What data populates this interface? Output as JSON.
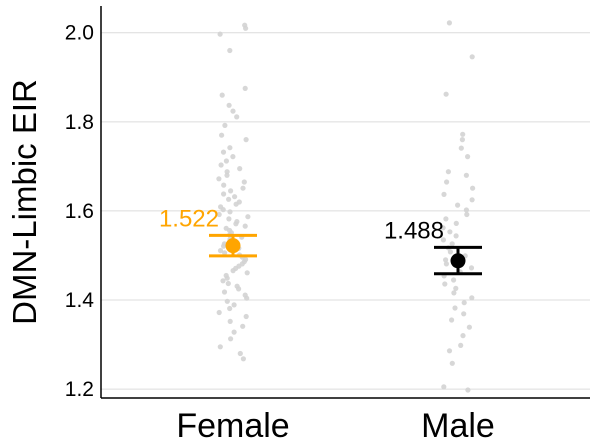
{
  "chart_data": {
    "type": "scatter",
    "title": "",
    "xlabel": "",
    "ylabel": "DMN-Limbic EIR",
    "categories": [
      "Female",
      "Male"
    ],
    "ylim": [
      1.18,
      2.06
    ],
    "yticks": [
      1.2,
      1.4,
      1.6,
      1.8,
      2.0
    ],
    "ytick_labels": [
      "1.2",
      "1.4",
      "1.6",
      "1.8",
      "2.0"
    ],
    "grid": "horizontal",
    "series": [
      {
        "category": "Female",
        "mean": 1.522,
        "mean_label": "1.522",
        "ci_low": 1.499,
        "ci_high": 1.545,
        "color": "#FFA500",
        "jitter_points": [
          2.017,
          2.01,
          1.997,
          1.96,
          1.875,
          1.86,
          1.837,
          1.824,
          1.811,
          1.792,
          1.77,
          1.76,
          1.742,
          1.732,
          1.722,
          1.712,
          1.703,
          1.695,
          1.688,
          1.68,
          1.672,
          1.665,
          1.658,
          1.651,
          1.645,
          1.638,
          1.632,
          1.626,
          1.62,
          1.615,
          1.609,
          1.603,
          1.598,
          1.592,
          1.587,
          1.582,
          1.576,
          1.571,
          1.566,
          1.561,
          1.556,
          1.551,
          1.546,
          1.541,
          1.536,
          1.531,
          1.526,
          1.521,
          1.516,
          1.511,
          1.506,
          1.501,
          1.496,
          1.491,
          1.486,
          1.481,
          1.476,
          1.471,
          1.466,
          1.461,
          1.455,
          1.449,
          1.443,
          1.437,
          1.431,
          1.425,
          1.418,
          1.411,
          1.404,
          1.397,
          1.389,
          1.381,
          1.372,
          1.363,
          1.352,
          1.341,
          1.328,
          1.313,
          1.295,
          1.28,
          1.268
        ]
      },
      {
        "category": "Male",
        "mean": 1.488,
        "mean_label": "1.488",
        "ci_low": 1.459,
        "ci_high": 1.518,
        "color": "#000000",
        "jitter_points": [
          2.022,
          1.946,
          1.862,
          1.772,
          1.76,
          1.741,
          1.722,
          1.688,
          1.68,
          1.665,
          1.651,
          1.637,
          1.625,
          1.613,
          1.602,
          1.592,
          1.582,
          1.572,
          1.562,
          1.553,
          1.544,
          1.535,
          1.526,
          1.517,
          1.508,
          1.499,
          1.49,
          1.481,
          1.472,
          1.463,
          1.454,
          1.445,
          1.436,
          1.426,
          1.416,
          1.405,
          1.394,
          1.382,
          1.369,
          1.355,
          1.339,
          1.32,
          1.298,
          1.286,
          1.258,
          1.205,
          1.198
        ]
      }
    ],
    "jitter_color": "#D3D3D3"
  }
}
